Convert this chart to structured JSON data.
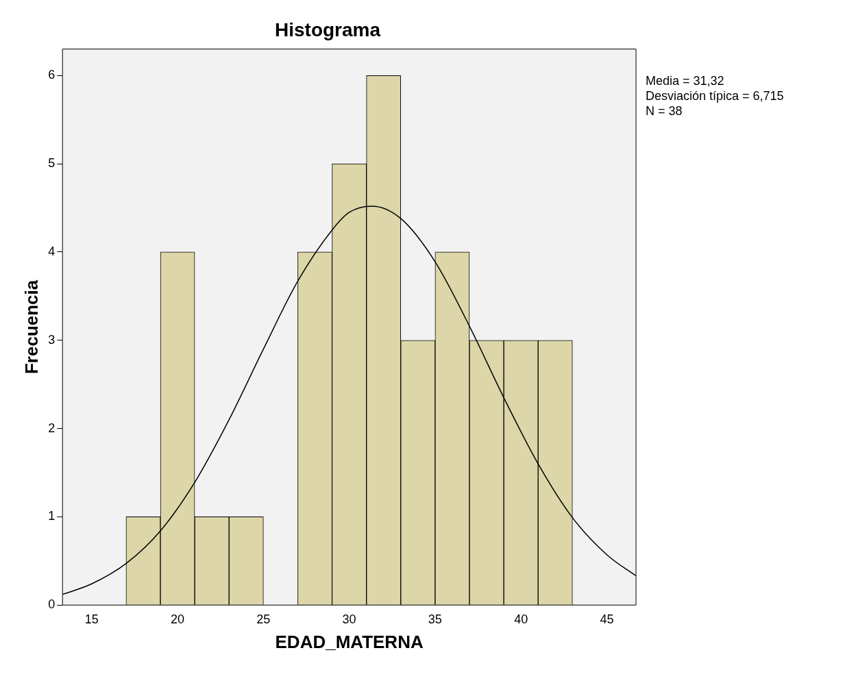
{
  "chart_data": {
    "type": "histogram",
    "title": "Histograma",
    "xlabel": "EDAD_MATERNA",
    "ylabel": "Frecuencia",
    "bins": [
      17,
      19,
      21,
      23,
      25,
      27,
      29,
      31,
      33,
      35,
      37,
      39,
      41,
      43
    ],
    "values": [
      1,
      4,
      1,
      1,
      0,
      4,
      5,
      6,
      3,
      4,
      3,
      3,
      3
    ],
    "color": "#dcd6a8",
    "series": [
      {
        "type": "line",
        "color": "#000000",
        "x": [
          13.3,
          15,
          17,
          19,
          21,
          23,
          25,
          27,
          29,
          30,
          31.32,
          33,
          35,
          37,
          39,
          41,
          43,
          45,
          46.7
        ],
        "values": [
          0.12,
          0.24,
          0.47,
          0.84,
          1.39,
          2.1,
          2.9,
          3.67,
          4.25,
          4.45,
          4.52,
          4.38,
          3.89,
          3.16,
          2.35,
          1.6,
          0.99,
          0.57,
          0.33
        ]
      }
    ],
    "xlim": [
      13.3,
      46.7
    ],
    "xticks": [
      15,
      20,
      25,
      30,
      35,
      40,
      45
    ],
    "ylim": [
      0,
      6.3
    ],
    "yticks": [
      0,
      1,
      2,
      3,
      4,
      5,
      6
    ],
    "grid": false,
    "legend": false,
    "marker": "none",
    "line_style": "solid",
    "annotations": [
      "Media = 31,32",
      "Desviación típica = 6,715",
      "N = 38"
    ]
  }
}
